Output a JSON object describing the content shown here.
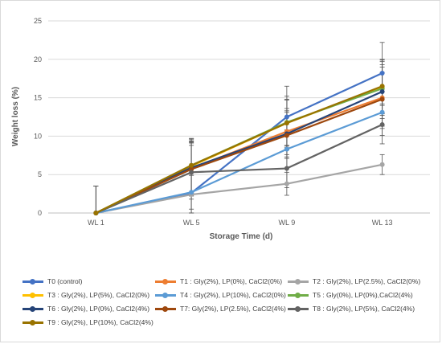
{
  "chart_data": {
    "type": "line",
    "title": "",
    "xlabel": "Storage Time (d)",
    "ylabel": "Weight loss (%)",
    "categories": [
      "WL 1",
      "WL 5",
      "WL 9",
      "WL 13"
    ],
    "ylim": [
      0,
      25
    ],
    "yticks": [
      "0",
      "5",
      "10",
      "15",
      "20",
      "25"
    ],
    "grid": true,
    "legend_position": "bottom",
    "series": [
      {
        "name": "T0 (control)",
        "color": "#4472c4",
        "values": [
          0,
          2.6,
          12.5,
          18.2
        ],
        "errors": [
          3.5,
          6.5,
          4,
          4
        ]
      },
      {
        "name": "T1 : Gly(2%), LP(0%), CaCl2(0%)",
        "color": "#ed7d31",
        "values": [
          0,
          5.8,
          10.6,
          15.0
        ],
        "errors": [
          3.5,
          3.5,
          3,
          4
        ]
      },
      {
        "name": "T2 : Gly(2%), LP(2.5%), CaCl2(0%)",
        "color": "#a5a5a5",
        "values": [
          0,
          2.4,
          3.8,
          6.3
        ],
        "errors": [
          3.5,
          2.5,
          1.5,
          1.3
        ]
      },
      {
        "name": "T3 : Gly(2%), LP(5%), CaCl2(0%)",
        "color": "#ffc000",
        "values": [
          0,
          6.1,
          11.7,
          16.4
        ],
        "errors": [
          3.5,
          3.5,
          3,
          3.5
        ]
      },
      {
        "name": "T4 : Gly(2%), LP(10%), CaCl2(0%)",
        "color": "#5b9bd5",
        "values": [
          0,
          2.7,
          8.3,
          13.1
        ],
        "errors": [
          3.5,
          2.2,
          2.5,
          3
        ]
      },
      {
        "name": "T5 : Gly(0%), LP(0%),CaCl2(4%)",
        "color": "#70ad47",
        "values": [
          0,
          6.2,
          11.8,
          16.2
        ],
        "errors": [
          3.5,
          3.5,
          3,
          3.5
        ]
      },
      {
        "name": "T6 : Gly(2%), LP(0%), CaCl2(4%)",
        "color": "#264478",
        "values": [
          0,
          5.9,
          10.3,
          15.8
        ],
        "errors": [
          3.5,
          3.5,
          3,
          3.5
        ]
      },
      {
        "name": "T7: Gly(2%), LP(2.5%), CaCl2(4%)",
        "color": "#9e480e",
        "values": [
          0,
          5.7,
          10.1,
          14.8
        ],
        "errors": [
          3.5,
          3.5,
          3,
          3.5
        ]
      },
      {
        "name": "T8 : Gly(2%), LP(5%), CaCl2(4%)",
        "color": "#636363",
        "values": [
          0,
          5.3,
          5.8,
          11.5
        ],
        "errors": [
          3.5,
          3.5,
          2.5,
          2.5
        ]
      },
      {
        "name": "T9 : Gly(2%), LP(10%), CaCl2(4%)",
        "color": "#997300",
        "values": [
          0,
          6.2,
          11.7,
          16.5
        ],
        "errors": [
          3.5,
          3.5,
          3.5,
          3.5
        ]
      }
    ]
  }
}
